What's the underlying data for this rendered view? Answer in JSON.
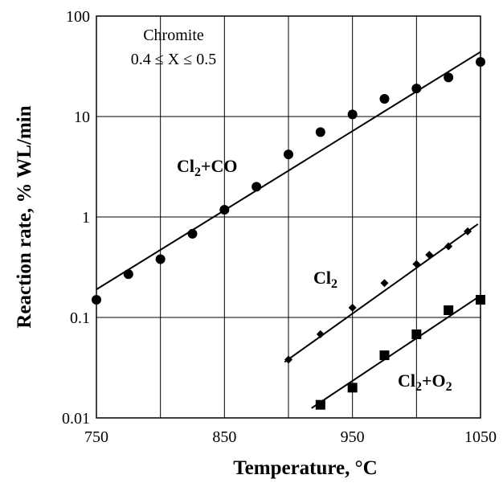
{
  "chart_data": {
    "type": "scatter",
    "xlabel": "Temperature, °C",
    "ylabel": "Reaction rate, % WL/min",
    "xlim": [
      750,
      1050
    ],
    "ylim": [
      0.01,
      100
    ],
    "yscale": "log",
    "x_ticks": [
      "750",
      "850",
      "950",
      "1050"
    ],
    "y_ticks": [
      "0.01",
      "0.1",
      "1",
      "10",
      "100"
    ],
    "grid": true,
    "annotation": {
      "line1": "Chromite",
      "line2": "0.4 ≤ X ≤ 0.5"
    },
    "series": [
      {
        "label_main": "Cl",
        "label_parts": [
          "Cl",
          "2",
          "+CO"
        ],
        "marker": "circle",
        "points": [
          [
            750,
            0.15
          ],
          [
            775,
            0.27
          ],
          [
            800,
            0.38
          ],
          [
            825,
            0.68
          ],
          [
            850,
            1.18
          ],
          [
            875,
            2.0
          ],
          [
            900,
            4.2
          ],
          [
            925,
            7.0
          ],
          [
            950,
            10.5
          ],
          [
            975,
            15.0
          ],
          [
            1000,
            19.0
          ],
          [
            1025,
            24.5
          ],
          [
            1050,
            35.0
          ]
        ],
        "fit": [
          [
            750,
            0.19
          ],
          [
            1050,
            44.0
          ]
        ]
      },
      {
        "label_parts": [
          "Cl",
          "2",
          ""
        ],
        "marker": "diamond",
        "points": [
          [
            900,
            0.038
          ],
          [
            925,
            0.068
          ],
          [
            950,
            0.125
          ],
          [
            975,
            0.22
          ],
          [
            1000,
            0.34
          ],
          [
            1010,
            0.42
          ],
          [
            1025,
            0.51
          ],
          [
            1040,
            0.72
          ]
        ],
        "fit": [
          [
            897,
            0.036
          ],
          [
            1048,
            0.85
          ]
        ]
      },
      {
        "label_parts": [
          "Cl",
          "2",
          "+O"
        ],
        "label_tail_sub": "2",
        "marker": "square",
        "points": [
          [
            925,
            0.0135
          ],
          [
            950,
            0.02
          ],
          [
            975,
            0.042
          ],
          [
            1000,
            0.068
          ],
          [
            1025,
            0.118
          ],
          [
            1050,
            0.15
          ]
        ],
        "fit": [
          [
            918,
            0.0125
          ],
          [
            1050,
            0.165
          ]
        ]
      }
    ]
  }
}
